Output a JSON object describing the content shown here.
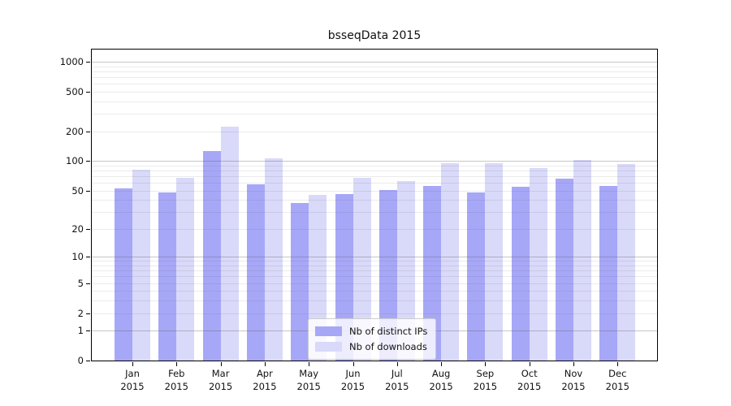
{
  "title": "bsseqData 2015",
  "legend": {
    "items": [
      {
        "label": "Nb of distinct IPs"
      },
      {
        "label": "Nb of downloads"
      }
    ]
  },
  "chart_data": {
    "type": "bar",
    "title": "bsseqData 2015",
    "categories": [
      "Jan",
      "Feb",
      "Mar",
      "Apr",
      "May",
      "Jun",
      "Jul",
      "Aug",
      "Sep",
      "Oct",
      "Nov",
      "Dec"
    ],
    "category_year": "2015",
    "series": [
      {
        "name": "Nb of distinct IPs",
        "color": "#a7a7f7",
        "values": [
          53,
          48,
          127,
          58,
          37,
          46,
          51,
          56,
          48,
          55,
          66,
          56
        ]
      },
      {
        "name": "Nb of downloads",
        "color": "#d9d9f9",
        "values": [
          82,
          67,
          220,
          107,
          45,
          67,
          62,
          94,
          94,
          85,
          102,
          93
        ]
      }
    ],
    "yscale": "log10(1+x)",
    "y_ticks": [
      0,
      1,
      2,
      5,
      10,
      20,
      50,
      100,
      200,
      500,
      1000
    ],
    "ylim": [
      0,
      1325
    ],
    "grid": "horizontal, minor decade lines, darker at powers of ten, drawn over bars",
    "legend_position": "lower center"
  }
}
